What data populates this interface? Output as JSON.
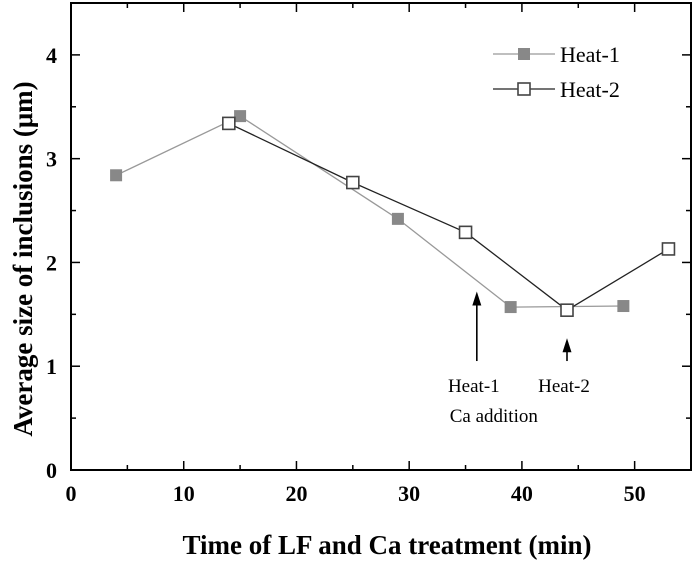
{
  "chart_data": {
    "type": "line",
    "xlabel": "Time of LF and Ca treatment (min)",
    "ylabel": "Average size of inclusions (μm)",
    "xlim": [
      0,
      55
    ],
    "ylim": [
      0,
      4.5
    ],
    "xticks": [
      0,
      10,
      20,
      30,
      40,
      50
    ],
    "yticks": [
      0,
      1,
      2,
      3,
      4
    ],
    "grid": false,
    "legend_position": "top-right",
    "series": [
      {
        "name": "Heat-1",
        "marker": "filled-square",
        "color": "#888888",
        "line_color": "#999999",
        "points": [
          {
            "x": 4,
            "y": 2.84
          },
          {
            "x": 15,
            "y": 3.41
          },
          {
            "x": 29,
            "y": 2.42
          },
          {
            "x": 39,
            "y": 1.57
          },
          {
            "x": 49,
            "y": 1.58
          }
        ]
      },
      {
        "name": "Heat-2",
        "marker": "open-square",
        "color": "#444444",
        "line_color": "#222222",
        "points": [
          {
            "x": 14,
            "y": 3.34
          },
          {
            "x": 25,
            "y": 2.77
          },
          {
            "x": 35,
            "y": 2.29
          },
          {
            "x": 44,
            "y": 1.54
          },
          {
            "x": 53,
            "y": 2.13
          }
        ]
      }
    ],
    "annotations": [
      {
        "id": "heat1",
        "text": "Heat-1",
        "subtext": "Ca addition",
        "x": 36,
        "y_from": 1.72,
        "y_to": 1.05
      },
      {
        "id": "heat2",
        "text": "Heat-2",
        "x": 44,
        "y_from": 1.27,
        "y_to": 1.05
      }
    ]
  }
}
